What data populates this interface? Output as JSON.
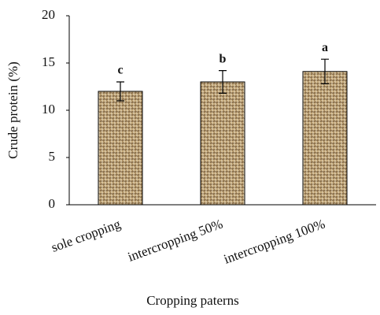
{
  "chart_data": {
    "type": "bar",
    "categories": [
      "sole  cropping",
      "intercropping  50%",
      "intercropping  100%"
    ],
    "values": [
      12,
      13,
      14.1
    ],
    "errors": [
      1,
      1.2,
      1.3
    ],
    "letters": [
      "c",
      "b",
      "a"
    ],
    "y_label": "Crude protein  (%)",
    "x_label": "Cropping paterns",
    "ylim": [
      0,
      20
    ],
    "yticks": [
      0,
      5,
      10,
      15,
      20
    ],
    "color": "#b89a6a"
  }
}
